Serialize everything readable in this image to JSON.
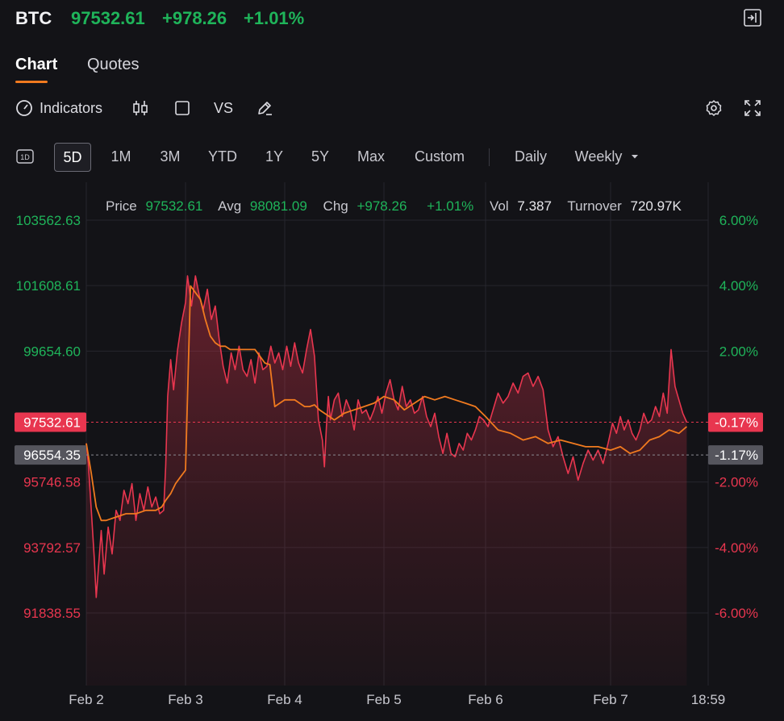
{
  "header": {
    "symbol": "BTC",
    "price": "97532.61",
    "change": "+978.26",
    "change_pct": "+1.01%"
  },
  "tabs": [
    {
      "label": "Chart",
      "active": true
    },
    {
      "label": "Quotes",
      "active": false
    }
  ],
  "toolbar": {
    "indicators_label": "Indicators",
    "vs_label": "VS"
  },
  "periods": {
    "day_icon_label": "1D",
    "items": [
      {
        "label": "5D",
        "active": true
      },
      {
        "label": "1M"
      },
      {
        "label": "3M"
      },
      {
        "label": "YTD"
      },
      {
        "label": "1Y"
      },
      {
        "label": "5Y"
      },
      {
        "label": "Max"
      },
      {
        "label": "Custom"
      }
    ],
    "daily_label": "Daily",
    "weekly_label": "Weekly"
  },
  "colors": {
    "up": "#1fb45a",
    "down": "#e8364f",
    "avg_line": "#f07a1f",
    "tab_accent": "#f07a1f"
  },
  "chart_data": {
    "type": "area",
    "info_bar": {
      "price_label": "Price",
      "price": "97532.61",
      "avg_label": "Avg",
      "avg": "98081.09",
      "chg_label": "Chg",
      "chg": "+978.26",
      "chg_pct": "+1.01%",
      "vol_label": "Vol",
      "vol": "7.387",
      "turnover_label": "Turnover",
      "turnover": "720.97K"
    },
    "prev_close": 96554.35,
    "last_price": 97532.61,
    "ylim": [
      91838.55,
      103562.63
    ],
    "y_ticks_left": [
      "103562.63",
      "101608.61",
      "99654.60",
      "97532.61",
      "96554.35",
      "95746.58",
      "93792.57",
      "91838.55"
    ],
    "y_ticks_left_values": [
      103562.63,
      101608.61,
      99654.6,
      97532.61,
      96554.35,
      95746.58,
      93792.57,
      91838.55
    ],
    "y_ticks_right": [
      "6.00%",
      "4.00%",
      "2.00%",
      "-0.17%",
      "-1.17%",
      "-2.00%",
      "-4.00%",
      "-6.00%"
    ],
    "x_ticks": [
      "Feb 2",
      "Feb 3",
      "Feb 4",
      "Feb 5",
      "Feb 6",
      "Feb 7",
      "18:59"
    ],
    "x_tick_positions": [
      0,
      1,
      2,
      3,
      4,
      5,
      6
    ],
    "price_series": {
      "name": "Price",
      "x": [
        0.0,
        0.02,
        0.05,
        0.08,
        0.1,
        0.12,
        0.15,
        0.18,
        0.22,
        0.26,
        0.3,
        0.34,
        0.38,
        0.42,
        0.46,
        0.5,
        0.54,
        0.58,
        0.62,
        0.66,
        0.7,
        0.74,
        0.78,
        0.8,
        0.82,
        0.85,
        0.88,
        0.92,
        0.96,
        1.0,
        1.02,
        1.06,
        1.1,
        1.14,
        1.18,
        1.22,
        1.26,
        1.3,
        1.34,
        1.38,
        1.42,
        1.46,
        1.5,
        1.54,
        1.58,
        1.62,
        1.66,
        1.7,
        1.74,
        1.78,
        1.82,
        1.86,
        1.9,
        1.94,
        1.98,
        2.02,
        2.06,
        2.1,
        2.14,
        2.18,
        2.22,
        2.26,
        2.3,
        2.34,
        2.38,
        2.4,
        2.42,
        2.44,
        2.46,
        2.5,
        2.54,
        2.58,
        2.62,
        2.66,
        2.7,
        2.74,
        2.78,
        2.82,
        2.86,
        2.9,
        2.94,
        2.98,
        3.02,
        3.06,
        3.1,
        3.14,
        3.18,
        3.22,
        3.26,
        3.3,
        3.34,
        3.38,
        3.42,
        3.46,
        3.5,
        3.54,
        3.58,
        3.62,
        3.66,
        3.7,
        3.74,
        3.78,
        3.82,
        3.86,
        3.9,
        3.94,
        3.98,
        4.02,
        4.06,
        4.1,
        4.14,
        4.18,
        4.22,
        4.26,
        4.3,
        4.34,
        4.38,
        4.42,
        4.46,
        4.5,
        4.54,
        4.58,
        4.62,
        4.66,
        4.7,
        4.74,
        4.78,
        4.82,
        4.86,
        4.9,
        4.94,
        4.98,
        5.02,
        5.06,
        5.1,
        5.14,
        5.18,
        5.22,
        5.26,
        5.3,
        5.34,
        5.38,
        5.42,
        5.46,
        5.5,
        5.54,
        5.58,
        5.62,
        5.66,
        5.7,
        5.74,
        5.78
      ],
      "values": [
        96900,
        96300,
        94900,
        93500,
        92300,
        93100,
        94300,
        93000,
        94400,
        93600,
        94900,
        94600,
        95500,
        95100,
        95700,
        94600,
        95400,
        94900,
        95600,
        95000,
        95300,
        94800,
        94900,
        96200,
        98300,
        99400,
        98500,
        99700,
        100500,
        101100,
        101900,
        101000,
        101900,
        101300,
        100900,
        101500,
        100600,
        101000,
        100000,
        99200,
        98700,
        99600,
        99100,
        99800,
        99100,
        98900,
        99400,
        98700,
        99600,
        99100,
        99200,
        99800,
        99300,
        99600,
        99100,
        99800,
        99200,
        99900,
        99300,
        99000,
        99700,
        100300,
        99500,
        97600,
        97000,
        96200,
        97400,
        98300,
        97600,
        98200,
        98400,
        97700,
        98200,
        97900,
        97300,
        98200,
        97800,
        97900,
        97600,
        97900,
        98300,
        97800,
        98400,
        98800,
        98200,
        97900,
        98600,
        98000,
        98200,
        97800,
        97900,
        98300,
        97700,
        97400,
        97800,
        97100,
        96600,
        97200,
        96600,
        96500,
        96900,
        96700,
        97200,
        97000,
        97300,
        97700,
        97600,
        97400,
        97900,
        98400,
        98100,
        98300,
        98700,
        98400,
        98900,
        99000,
        98600,
        98900,
        98500,
        97300,
        96800,
        97100,
        96500,
        96000,
        96500,
        95800,
        96300,
        96700,
        96400,
        96700,
        96300,
        96900,
        97500,
        97200,
        97700,
        97300,
        97600,
        97200,
        97000,
        97300,
        97800,
        97500,
        97600,
        98000,
        97700,
        98400,
        97800,
        99700,
        98600,
        98200,
        97800,
        97533
      ]
    },
    "avg_series": {
      "name": "Avg",
      "x": [
        0.0,
        0.05,
        0.1,
        0.15,
        0.2,
        0.3,
        0.4,
        0.5,
        0.6,
        0.7,
        0.76,
        0.8,
        0.85,
        0.9,
        0.95,
        1.0,
        1.05,
        1.1,
        1.15,
        1.2,
        1.25,
        1.3,
        1.35,
        1.4,
        1.45,
        1.5,
        1.55,
        1.6,
        1.65,
        1.7,
        1.75,
        1.8,
        1.85,
        1.9,
        1.95,
        2.0,
        2.05,
        2.1,
        2.15,
        2.2,
        2.25,
        2.3,
        2.35,
        2.4,
        2.45,
        2.5,
        2.6,
        2.7,
        2.8,
        2.9,
        3.0,
        3.1,
        3.2,
        3.3,
        3.4,
        3.5,
        3.6,
        3.7,
        3.8,
        3.9,
        4.0,
        4.1,
        4.2,
        4.3,
        4.4,
        4.5,
        4.6,
        4.7,
        4.8,
        4.9,
        5.0,
        5.1,
        5.2,
        5.3,
        5.4,
        5.5,
        5.6,
        5.7,
        5.78
      ],
      "values": [
        96900,
        96000,
        95000,
        94600,
        94600,
        94700,
        94800,
        94800,
        94900,
        94900,
        95000,
        95200,
        95400,
        95700,
        95900,
        96100,
        101600,
        101400,
        101200,
        100600,
        100100,
        99900,
        99800,
        99800,
        99700,
        99700,
        99700,
        99700,
        99700,
        99700,
        99500,
        99300,
        99250,
        98000,
        98100,
        98200,
        98200,
        98200,
        98100,
        98000,
        98000,
        98050,
        97900,
        97800,
        97700,
        97600,
        97800,
        97900,
        98000,
        98100,
        98300,
        98200,
        97900,
        98100,
        98300,
        98200,
        98300,
        98200,
        98100,
        98000,
        97700,
        97300,
        97200,
        97000,
        97100,
        96900,
        97000,
        96900,
        96800,
        96800,
        96700,
        96800,
        96600,
        96700,
        97000,
        97100,
        97300,
        97200,
        97400
      ]
    }
  }
}
